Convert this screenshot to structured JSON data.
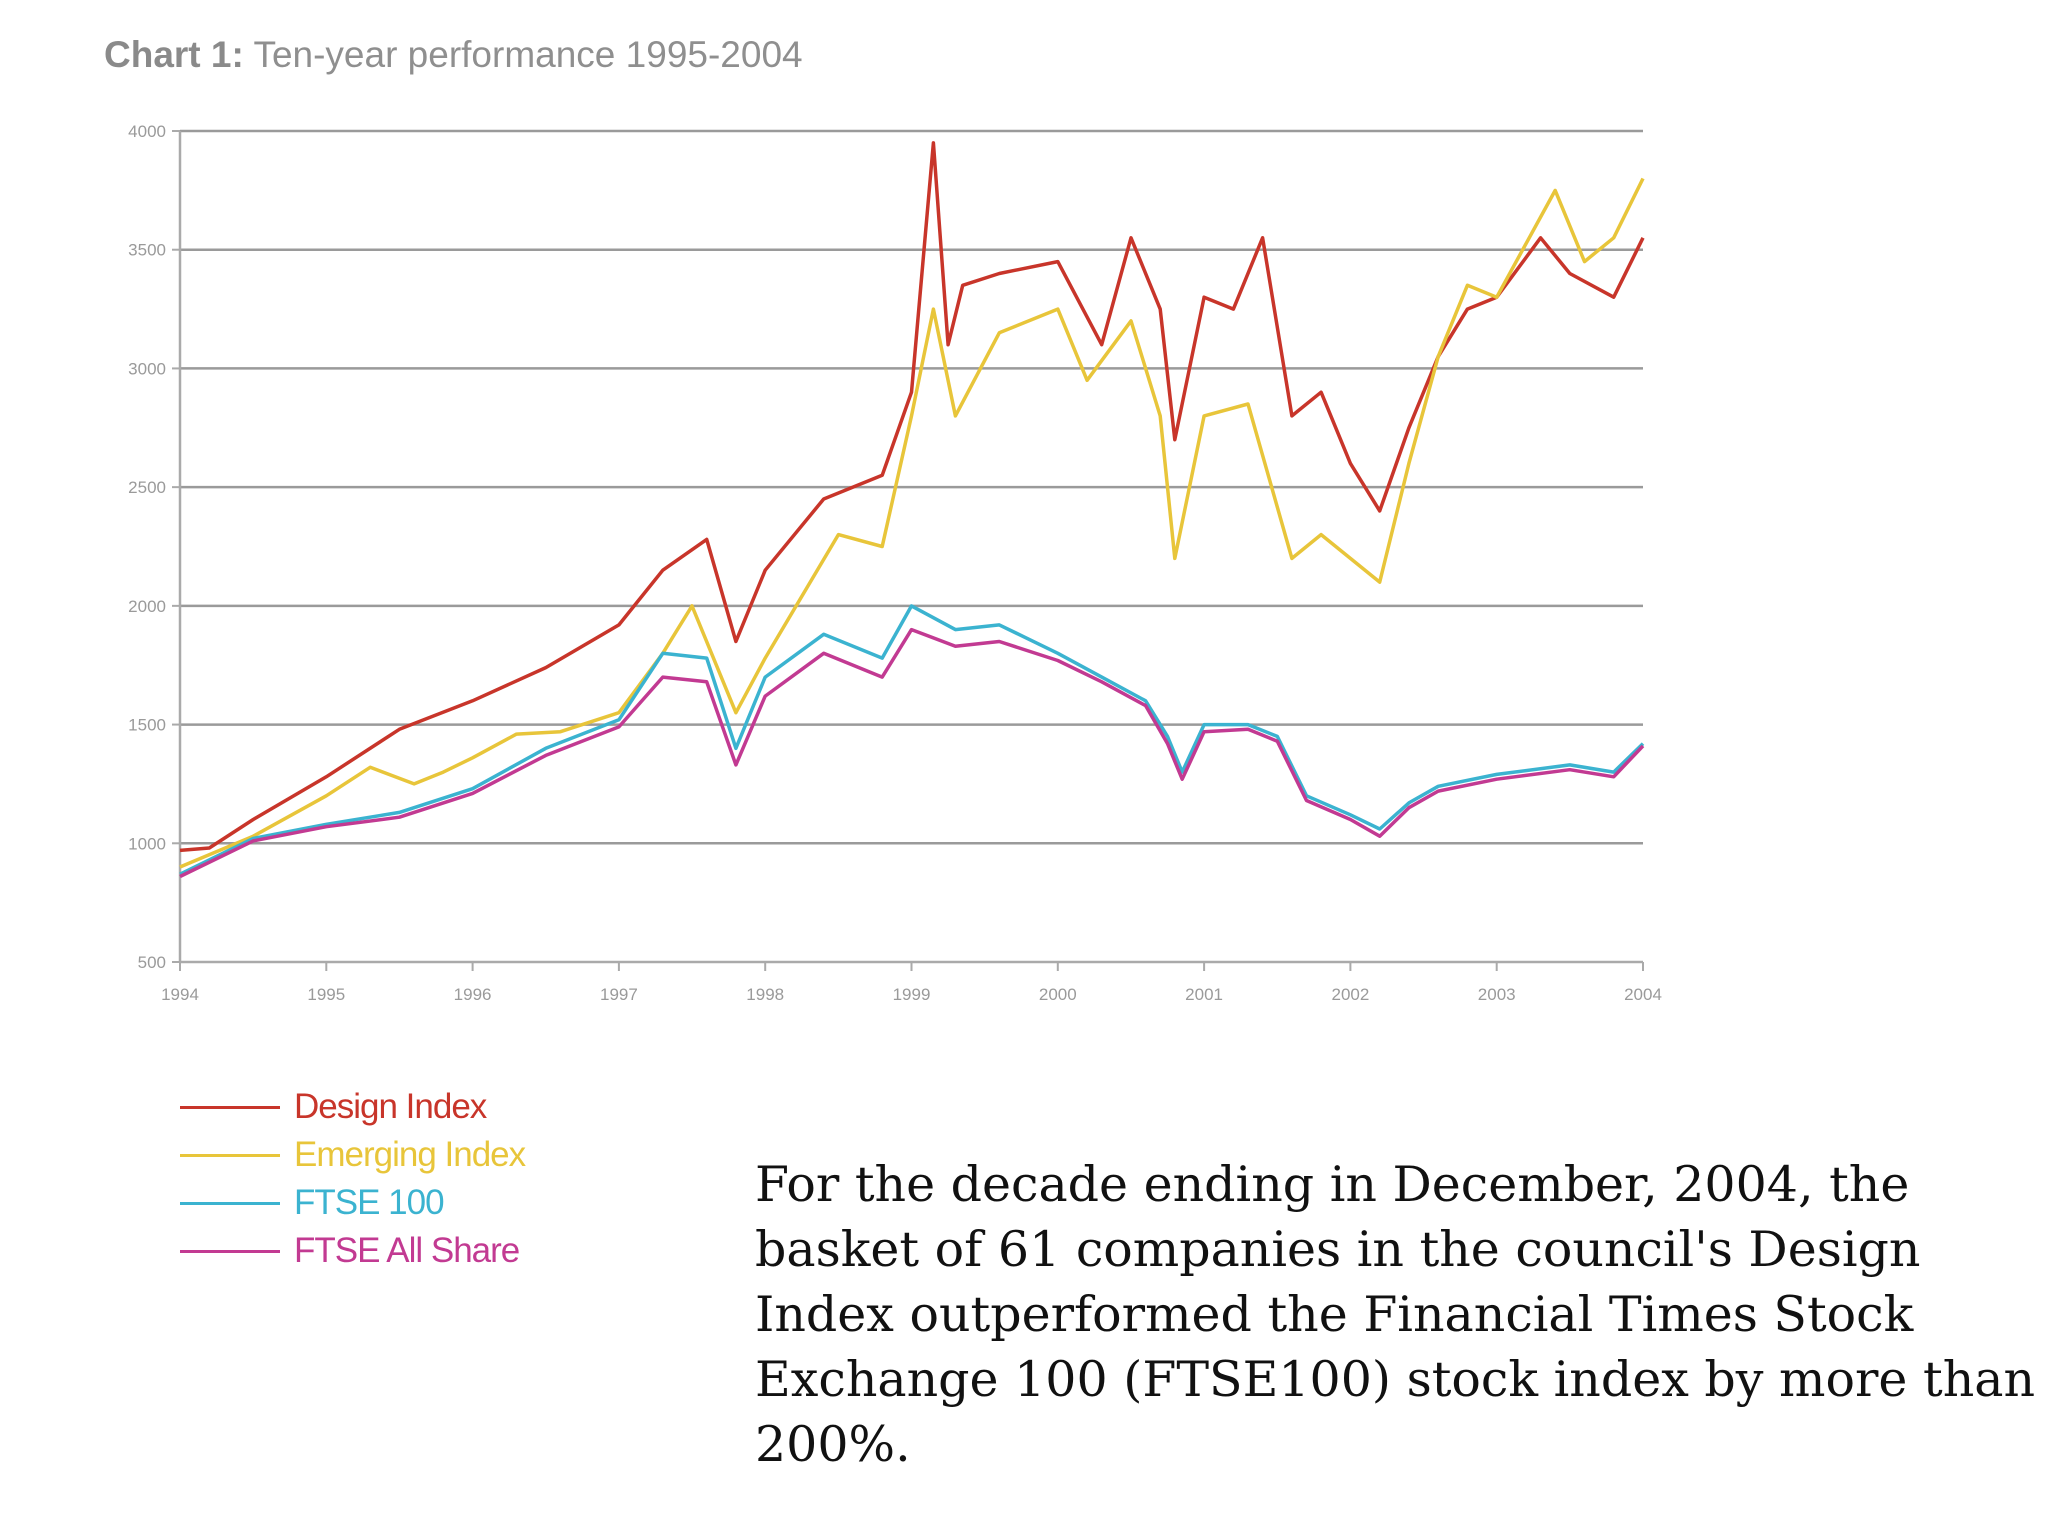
{
  "title": {
    "prefix": "Chart 1:",
    "text": "Ten-year performance 1995-2004"
  },
  "caption": "For the decade ending in December, 2004, the basket of 61 companies in the council's Design Index outperformed the Financial Times Stock Exchange 100 (FTSE100) stock index by more than 200%.",
  "legend": [
    {
      "label": "Design Index",
      "color": "#c8352a"
    },
    {
      "label": "Emerging Index",
      "color": "#e8c53a"
    },
    {
      "label": "FTSE 100",
      "color": "#3bb3d0"
    },
    {
      "label": "FTSE All Share",
      "color": "#c23a92"
    }
  ],
  "chart_data": {
    "type": "line",
    "title": "Chart 1: Ten-year performance 1995-2004",
    "xlabel": "",
    "ylabel": "",
    "xlim": [
      1994,
      2004
    ],
    "ylim": [
      500,
      4000
    ],
    "x_ticks": [
      "1994",
      "1995",
      "1996",
      "1997",
      "1998",
      "1999",
      "2000",
      "2001",
      "2002",
      "2003",
      "2004"
    ],
    "y_ticks": [
      "500",
      "1000",
      "1500",
      "2000",
      "2500",
      "3000",
      "3500",
      "4000"
    ],
    "grid": true,
    "legend_position": "bottom-left",
    "series": [
      {
        "name": "Design Index",
        "color": "#c8352a",
        "x": [
          1994.0,
          1994.2,
          1994.5,
          1995.0,
          1995.5,
          1996.0,
          1996.5,
          1997.0,
          1997.3,
          1997.6,
          1997.8,
          1998.0,
          1998.4,
          1998.8,
          1999.0,
          1999.15,
          1999.25,
          1999.35,
          1999.6,
          2000.0,
          2000.3,
          2000.5,
          2000.7,
          2000.8,
          2001.0,
          2001.2,
          2001.4,
          2001.6,
          2001.8,
          2002.0,
          2002.2,
          2002.4,
          2002.6,
          2002.8,
          2003.0,
          2003.3,
          2003.5,
          2003.8,
          2004.0
        ],
        "y": [
          970,
          980,
          1100,
          1280,
          1480,
          1600,
          1740,
          1920,
          2150,
          2280,
          1850,
          2150,
          2450,
          2550,
          2900,
          3950,
          3100,
          3350,
          3400,
          3450,
          3100,
          3550,
          3250,
          2700,
          3300,
          3250,
          3550,
          2800,
          2900,
          2600,
          2400,
          2750,
          3050,
          3250,
          3300,
          3550,
          3400,
          3300,
          3550
        ]
      },
      {
        "name": "Emerging Index",
        "color": "#e8c53a",
        "x": [
          1994.0,
          1994.5,
          1995.0,
          1995.3,
          1995.6,
          1995.8,
          1996.0,
          1996.3,
          1996.6,
          1997.0,
          1997.3,
          1997.5,
          1997.8,
          1998.0,
          1998.5,
          1998.8,
          1999.0,
          1999.15,
          1999.3,
          1999.6,
          2000.0,
          2000.2,
          2000.5,
          2000.7,
          2000.8,
          2001.0,
          2001.3,
          2001.6,
          2001.8,
          2002.0,
          2002.2,
          2002.4,
          2002.6,
          2002.8,
          2003.0,
          2003.4,
          2003.6,
          2003.8,
          2004.0
        ],
        "y": [
          900,
          1030,
          1200,
          1320,
          1250,
          1300,
          1360,
          1460,
          1470,
          1550,
          1800,
          2000,
          1550,
          1780,
          2300,
          2250,
          2800,
          3250,
          2800,
          3150,
          3250,
          2950,
          3200,
          2800,
          2200,
          2800,
          2850,
          2200,
          2300,
          2200,
          2100,
          2600,
          3050,
          3350,
          3300,
          3750,
          3450,
          3550,
          3800
        ]
      },
      {
        "name": "FTSE 100",
        "color": "#3bb3d0",
        "x": [
          1994.0,
          1994.5,
          1995.0,
          1995.5,
          1996.0,
          1996.5,
          1997.0,
          1997.3,
          1997.6,
          1997.8,
          1998.0,
          1998.4,
          1998.8,
          1999.0,
          1999.3,
          1999.6,
          2000.0,
          2000.3,
          2000.6,
          2000.75,
          2000.85,
          2001.0,
          2001.3,
          2001.5,
          2001.7,
          2002.0,
          2002.2,
          2002.4,
          2002.6,
          2003.0,
          2003.5,
          2003.8,
          2004.0
        ],
        "y": [
          870,
          1020,
          1080,
          1130,
          1230,
          1400,
          1520,
          1800,
          1780,
          1400,
          1700,
          1880,
          1780,
          2000,
          1900,
          1920,
          1800,
          1700,
          1600,
          1450,
          1300,
          1500,
          1500,
          1450,
          1200,
          1120,
          1060,
          1170,
          1240,
          1290,
          1330,
          1300,
          1420
        ]
      },
      {
        "name": "FTSE All Share",
        "color": "#c23a92",
        "x": [
          1994.0,
          1994.5,
          1995.0,
          1995.5,
          1996.0,
          1996.5,
          1997.0,
          1997.3,
          1997.6,
          1997.8,
          1998.0,
          1998.4,
          1998.8,
          1999.0,
          1999.3,
          1999.6,
          2000.0,
          2000.3,
          2000.6,
          2000.75,
          2000.85,
          2001.0,
          2001.3,
          2001.5,
          2001.7,
          2002.0,
          2002.2,
          2002.4,
          2002.6,
          2003.0,
          2003.5,
          2003.8,
          2004.0
        ],
        "y": [
          860,
          1010,
          1070,
          1110,
          1210,
          1370,
          1490,
          1700,
          1680,
          1330,
          1620,
          1800,
          1700,
          1900,
          1830,
          1850,
          1770,
          1680,
          1580,
          1420,
          1270,
          1470,
          1480,
          1430,
          1180,
          1100,
          1030,
          1150,
          1220,
          1270,
          1310,
          1280,
          1410
        ]
      }
    ]
  }
}
